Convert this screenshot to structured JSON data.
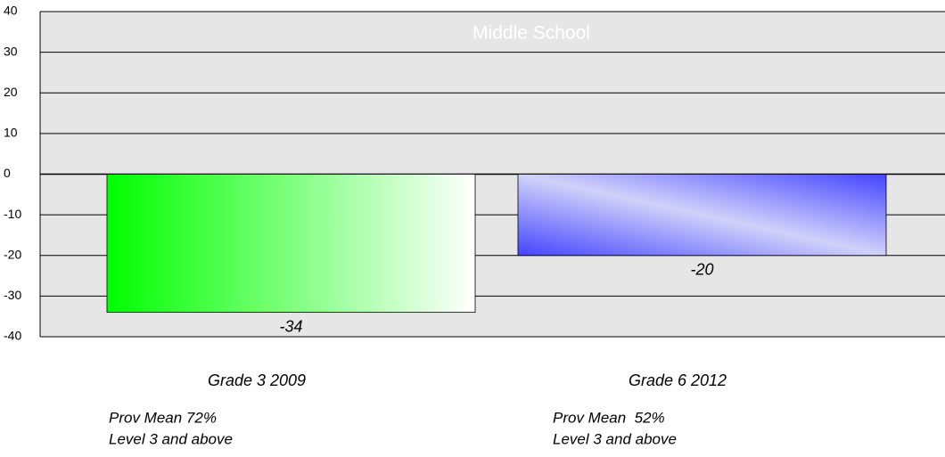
{
  "chart_data": {
    "type": "bar",
    "title": "Middle School",
    "categories": [
      "Grade 3 2009",
      "Grade 6 2012"
    ],
    "values": [
      -34,
      -20
    ],
    "colors": [
      "#00ff00",
      "#4444ff"
    ],
    "ylim": [
      -40,
      40
    ],
    "yticks": [
      40,
      30,
      20,
      10,
      0,
      -10,
      -20,
      -30,
      -40
    ],
    "grid": true,
    "annotations": [
      [
        "Prov Mean 72%",
        "Level 3 and above"
      ],
      [
        "Prov Mean  52%",
        "Level 3 and above"
      ]
    ]
  }
}
